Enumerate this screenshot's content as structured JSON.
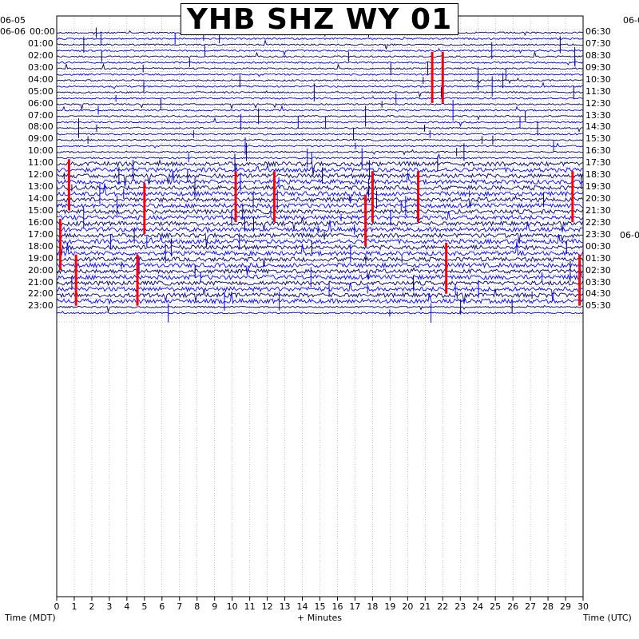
{
  "title": "YHB SHZ WY 01",
  "chart_data": {
    "type": "line",
    "title": "YHB SHZ WY 01",
    "xlabel": "+ Minutes",
    "left_axis_label": "Time (MDT)",
    "right_axis_label": "Time (UTC)",
    "x_ticks": [
      0,
      1,
      2,
      3,
      4,
      5,
      6,
      7,
      8,
      9,
      10,
      11,
      12,
      13,
      14,
      15,
      16,
      17,
      18,
      19,
      20,
      21,
      22,
      23,
      24,
      25,
      26,
      27,
      28,
      29,
      30
    ],
    "xlim": [
      0,
      30
    ],
    "left_date_top": "06-05",
    "left_date_start": "06-06",
    "right_date_top": "06-0",
    "right_date_change": "06-0",
    "right_date_change_hour": 18,
    "left_hours": [
      "00:00",
      "01:00",
      "02:00",
      "03:00",
      "04:00",
      "05:00",
      "06:00",
      "07:00",
      "08:00",
      "09:00",
      "10:00",
      "11:00",
      "12:00",
      "13:00",
      "14:00",
      "15:00",
      "16:00",
      "17:00",
      "18:00",
      "19:00",
      "20:00",
      "21:00",
      "22:00",
      "23:00"
    ],
    "right_hours": [
      "06:30",
      "07:30",
      "08:30",
      "09:30",
      "10:30",
      "11:30",
      "12:30",
      "13:30",
      "14:30",
      "15:30",
      "16:30",
      "17:30",
      "18:30",
      "19:30",
      "20:30",
      "21:30",
      "22:30",
      "23:30",
      "00:30",
      "01:30",
      "02:30",
      "03:30",
      "04:30",
      "05:30"
    ],
    "trace_colors": [
      "#000066",
      "#0000ff"
    ],
    "clip_color": "#ff0000",
    "clip_events": [
      {
        "hour": 2,
        "minute": 21.4
      },
      {
        "hour": 2,
        "minute": 22.0
      },
      {
        "hour": 11,
        "minute": 0.7
      },
      {
        "hour": 12,
        "minute": 10.2
      },
      {
        "hour": 12,
        "minute": 12.4
      },
      {
        "hour": 12,
        "minute": 20.6
      },
      {
        "hour": 12,
        "minute": 18.0
      },
      {
        "hour": 12,
        "minute": 29.4
      },
      {
        "hour": 13,
        "minute": 5.0
      },
      {
        "hour": 14,
        "minute": 17.6
      },
      {
        "hour": 16,
        "minute": 0.2
      },
      {
        "hour": 19,
        "minute": 1.1
      },
      {
        "hour": 19,
        "minute": 4.6
      },
      {
        "hour": 18,
        "minute": 22.2
      },
      {
        "hour": 19,
        "minute": 29.8
      }
    ],
    "grid": true
  }
}
